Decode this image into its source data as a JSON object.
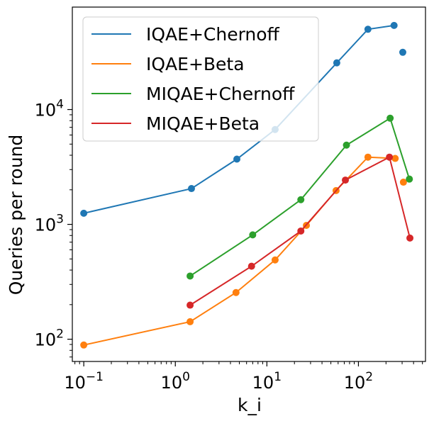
{
  "chart_data": {
    "type": "line",
    "xlabel": "k_i",
    "ylabel": "Queries per round",
    "xscale": "log",
    "yscale": "log",
    "xlim": [
      0.075,
      540
    ],
    "ylim": [
      64,
      78000
    ],
    "xticks": [
      {
        "value": 0.1,
        "base": "10",
        "exp": "−1"
      },
      {
        "value": 1,
        "base": "10",
        "exp": "0"
      },
      {
        "value": 10,
        "base": "10",
        "exp": "1"
      },
      {
        "value": 100,
        "base": "10",
        "exp": "2"
      }
    ],
    "yticks": [
      {
        "value": 100,
        "base": "10",
        "exp": "2"
      },
      {
        "value": 1000,
        "base": "10",
        "exp": "3"
      },
      {
        "value": 10000,
        "base": "10",
        "exp": "4"
      }
    ],
    "grid": false,
    "legend_position": "top-left",
    "series": [
      {
        "name": "IQAE+Chernoff",
        "color": "#1f77b4",
        "points": [
          [
            0.1,
            1250
          ],
          [
            1.5,
            2050
          ],
          [
            4.7,
            3700
          ],
          [
            12.3,
            6700
          ],
          [
            58,
            25500
          ],
          [
            127,
            50000
          ],
          [
            245,
            54000
          ],
          [
            305,
            31500
          ]
        ],
        "line_segments": [
          [
            0,
            6
          ]
        ]
      },
      {
        "name": "IQAE+Beta",
        "color": "#ff7f0e",
        "points": [
          [
            0.1,
            89
          ],
          [
            1.45,
            142
          ],
          [
            4.6,
            255
          ],
          [
            12.3,
            490
          ],
          [
            27,
            980
          ],
          [
            57,
            1970
          ],
          [
            127,
            3850
          ],
          [
            252,
            3750
          ],
          [
            310,
            2330
          ]
        ],
        "line_segments": [
          [
            0,
            7
          ]
        ]
      },
      {
        "name": "MIQAE+Chernoff",
        "color": "#2ca02c",
        "points": [
          [
            1.45,
            355
          ],
          [
            7,
            810
          ],
          [
            23.5,
            1640
          ],
          [
            74,
            4900
          ],
          [
            222,
            8400
          ],
          [
            360,
            2480
          ]
        ],
        "line_segments": [
          [
            0,
            5
          ]
        ]
      },
      {
        "name": "MIQAE+Beta",
        "color": "#d62728",
        "points": [
          [
            1.45,
            198
          ],
          [
            6.8,
            432
          ],
          [
            23.5,
            875
          ],
          [
            72,
            2430
          ],
          [
            218,
            3850
          ],
          [
            365,
            760
          ]
        ],
        "line_segments": [
          [
            0,
            5
          ]
        ]
      }
    ]
  }
}
